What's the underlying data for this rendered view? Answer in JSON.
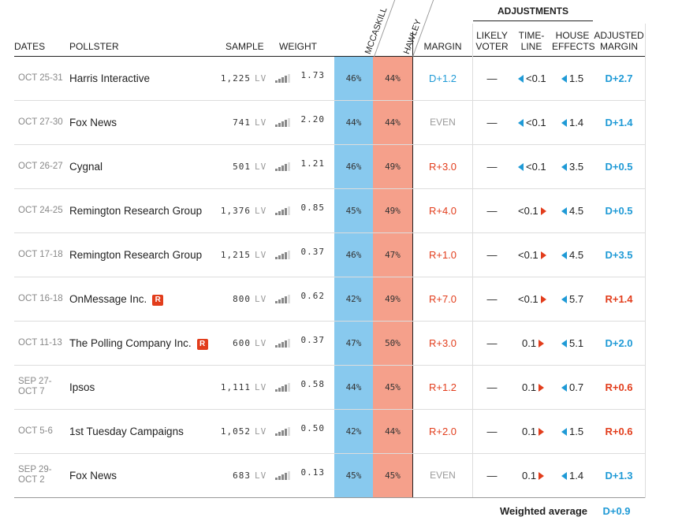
{
  "header": {
    "adjustments": "ADJUSTMENTS",
    "columns": {
      "dates": "DATES",
      "pollster": "POLLSTER",
      "sample": "SAMPLE",
      "weight": "WEIGHT",
      "mccaskill": "MCCASKILL",
      "hawley": "HAWLEY",
      "margin": "MARGIN",
      "likely_voter": [
        "LIKELY",
        "VOTER"
      ],
      "timeline": [
        "TIME-",
        "LINE"
      ],
      "house_effects": [
        "HOUSE",
        "EFFECTS"
      ],
      "adjusted_margin": [
        "ADJUSTED",
        "MARGIN"
      ]
    }
  },
  "table": {
    "rows": [
      {
        "dates": [
          "OCT 25-31"
        ],
        "pollster": "Harris Interactive",
        "badge": null,
        "sample": "1,225",
        "sample_type": "LV",
        "weight": "1.73",
        "mccaskill": "46%",
        "hawley": "44%",
        "margin": "D+1.2",
        "likely_voter": "—",
        "timeline": "<0.1",
        "timeline_arrow": "left",
        "house_effects": "1.5",
        "house_arrow": "left",
        "adjusted_margin": "D+2.7"
      },
      {
        "dates": [
          "OCT 27-30"
        ],
        "pollster": "Fox News",
        "badge": null,
        "sample": "741",
        "sample_type": "LV",
        "weight": "2.20",
        "mccaskill": "44%",
        "hawley": "44%",
        "margin": "EVEN",
        "likely_voter": "—",
        "timeline": "<0.1",
        "timeline_arrow": "left",
        "house_effects": "1.4",
        "house_arrow": "left",
        "adjusted_margin": "D+1.4"
      },
      {
        "dates": [
          "OCT 26-27"
        ],
        "pollster": "Cygnal",
        "badge": null,
        "sample": "501",
        "sample_type": "LV",
        "weight": "1.21",
        "mccaskill": "46%",
        "hawley": "49%",
        "margin": "R+3.0",
        "likely_voter": "—",
        "timeline": "<0.1",
        "timeline_arrow": "left",
        "house_effects": "3.5",
        "house_arrow": "left",
        "adjusted_margin": "D+0.5"
      },
      {
        "dates": [
          "OCT 24-25"
        ],
        "pollster": "Remington Research Group",
        "badge": null,
        "sample": "1,376",
        "sample_type": "LV",
        "weight": "0.85",
        "mccaskill": "45%",
        "hawley": "49%",
        "margin": "R+4.0",
        "likely_voter": "—",
        "timeline": "<0.1",
        "timeline_arrow": "right",
        "house_effects": "4.5",
        "house_arrow": "left",
        "adjusted_margin": "D+0.5"
      },
      {
        "dates": [
          "OCT 17-18"
        ],
        "pollster": "Remington Research Group",
        "badge": null,
        "sample": "1,215",
        "sample_type": "LV",
        "weight": "0.37",
        "mccaskill": "46%",
        "hawley": "47%",
        "margin": "R+1.0",
        "likely_voter": "—",
        "timeline": "<0.1",
        "timeline_arrow": "right",
        "house_effects": "4.5",
        "house_arrow": "left",
        "adjusted_margin": "D+3.5"
      },
      {
        "dates": [
          "OCT 16-18"
        ],
        "pollster": "OnMessage Inc.",
        "badge": "R",
        "sample": "800",
        "sample_type": "LV",
        "weight": "0.62",
        "mccaskill": "42%",
        "hawley": "49%",
        "margin": "R+7.0",
        "likely_voter": "—",
        "timeline": "<0.1",
        "timeline_arrow": "right",
        "house_effects": "5.7",
        "house_arrow": "left",
        "adjusted_margin": "R+1.4"
      },
      {
        "dates": [
          "OCT 11-13"
        ],
        "pollster": "The Polling Company Inc.",
        "badge": "R",
        "sample": "600",
        "sample_type": "LV",
        "weight": "0.37",
        "mccaskill": "47%",
        "hawley": "50%",
        "margin": "R+3.0",
        "likely_voter": "—",
        "timeline": "0.1",
        "timeline_arrow": "right",
        "house_effects": "5.1",
        "house_arrow": "left",
        "adjusted_margin": "D+2.0"
      },
      {
        "dates": [
          "SEP 27-",
          "OCT 7"
        ],
        "pollster": "Ipsos",
        "badge": null,
        "sample": "1,111",
        "sample_type": "LV",
        "weight": "0.58",
        "mccaskill": "44%",
        "hawley": "45%",
        "margin": "R+1.2",
        "likely_voter": "—",
        "timeline": "0.1",
        "timeline_arrow": "right",
        "house_effects": "0.7",
        "house_arrow": "left",
        "adjusted_margin": "R+0.6"
      },
      {
        "dates": [
          "OCT 5-6"
        ],
        "pollster": "1st Tuesday Campaigns",
        "badge": null,
        "sample": "1,052",
        "sample_type": "LV",
        "weight": "0.50",
        "mccaskill": "42%",
        "hawley": "44%",
        "margin": "R+2.0",
        "likely_voter": "—",
        "timeline": "0.1",
        "timeline_arrow": "right",
        "house_effects": "1.5",
        "house_arrow": "left",
        "adjusted_margin": "R+0.6"
      },
      {
        "dates": [
          "SEP 29-",
          "OCT 2"
        ],
        "pollster": "Fox News",
        "badge": null,
        "sample": "683",
        "sample_type": "LV",
        "weight": "0.13",
        "mccaskill": "45%",
        "hawley": "45%",
        "margin": "EVEN",
        "likely_voter": "—",
        "timeline": "0.1",
        "timeline_arrow": "right",
        "house_effects": "1.4",
        "house_arrow": "left",
        "adjusted_margin": "D+1.3"
      }
    ]
  },
  "footer": {
    "label": "Weighted average",
    "value": "D+0.9"
  }
}
